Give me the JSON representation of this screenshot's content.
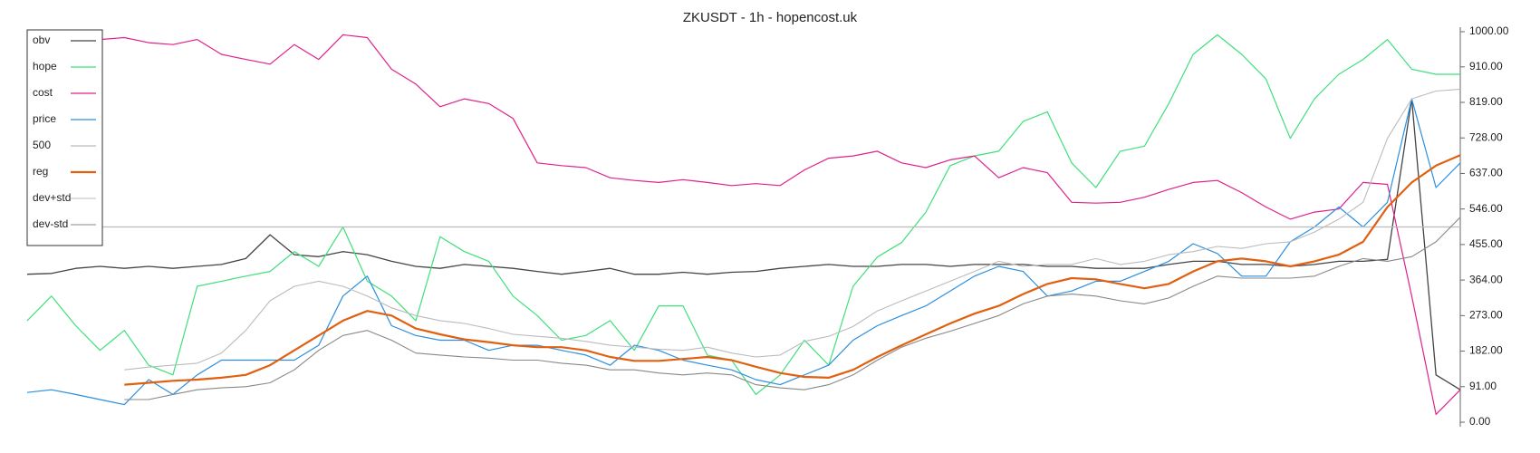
{
  "chart_data": {
    "type": "line",
    "title": "ZKUSDT - 1h - hopencost.uk",
    "ylim": [
      0,
      1000
    ],
    "yticks": [
      {
        "value": 0,
        "label": "0.00"
      },
      {
        "value": 91,
        "label": "91.00"
      },
      {
        "value": 182,
        "label": "182.00"
      },
      {
        "value": 273,
        "label": "273.00"
      },
      {
        "value": 364,
        "label": "364.00"
      },
      {
        "value": 455,
        "label": "455.00"
      },
      {
        "value": 546,
        "label": "546.00"
      },
      {
        "value": 637,
        "label": "637.00"
      },
      {
        "value": 728,
        "label": "728.00"
      },
      {
        "value": 819,
        "label": "819.00"
      },
      {
        "value": 910,
        "label": "910.00"
      },
      {
        "value": 1000,
        "label": "1000.00"
      }
    ],
    "legend": "upper left",
    "series": [
      {
        "name": "obv",
        "color": "#444444",
        "width": 1.3,
        "values": [
          379,
          381,
          394,
          399,
          394,
          399,
          394,
          399,
          404,
          419,
          480,
          429,
          424,
          437,
          429,
          412,
          399,
          394,
          404,
          399,
          394,
          386,
          379,
          386,
          394,
          379,
          379,
          384,
          379,
          384,
          386,
          394,
          399,
          404,
          399,
          399,
          404,
          404,
          399,
          404,
          404,
          404,
          399,
          399,
          394,
          394,
          394,
          404,
          412,
          412,
          404,
          404,
          399,
          404,
          412,
          412,
          417,
          828,
          121,
          83
        ]
      },
      {
        "name": "hope",
        "color": "#3ee07a",
        "width": 1.2,
        "values": [
          260,
          323,
          247,
          184,
          235,
          146,
          121,
          348,
          361,
          374,
          386,
          437,
          399,
          500,
          361,
          323,
          260,
          475,
          437,
          412,
          323,
          273,
          210,
          222,
          260,
          184,
          298,
          298,
          172,
          159,
          71,
          121,
          210,
          146,
          348,
          423,
          460,
          538,
          657,
          682,
          694,
          770,
          795,
          664,
          601,
          694,
          707,
          816,
          942,
          992,
          942,
          879,
          727,
          828,
          891,
          929,
          980,
          904,
          891,
          891
        ]
      },
      {
        "name": "cost",
        "color": "#e0218a",
        "width": 1.2,
        "values": [
          980,
          980,
          980,
          980,
          985,
          972,
          967,
          980,
          942,
          929,
          917,
          967,
          929,
          992,
          985,
          904,
          866,
          808,
          828,
          816,
          778,
          664,
          657,
          652,
          626,
          619,
          614,
          621,
          614,
          606,
          611,
          606,
          646,
          676,
          682,
          694,
          664,
          652,
          672,
          682,
          626,
          652,
          639,
          563,
          561,
          563,
          576,
          596,
          614,
          619,
          588,
          551,
          520,
          538,
          546,
          614,
          609,
          323,
          20,
          83
        ]
      },
      {
        "name": "price",
        "color": "#2a8fe0",
        "width": 1.2,
        "values": [
          76,
          83,
          71,
          58,
          45,
          109,
          71,
          121,
          159,
          159,
          159,
          159,
          197,
          323,
          374,
          247,
          222,
          210,
          210,
          184,
          197,
          197,
          184,
          172,
          146,
          197,
          184,
          159,
          146,
          134,
          109,
          96,
          121,
          146,
          210,
          247,
          273,
          298,
          336,
          374,
          399,
          386,
          323,
          336,
          361,
          361,
          386,
          412,
          457,
          432,
          374,
          374,
          462,
          500,
          551,
          500,
          563,
          828,
          601,
          664
        ]
      },
      {
        "name": "500",
        "color": "#bbbbbb",
        "width": 1.2,
        "values": [
          500,
          500,
          500,
          500,
          500,
          500,
          500,
          500,
          500,
          500,
          500,
          500,
          500,
          500,
          500,
          500,
          500,
          500,
          500,
          500,
          500,
          500,
          500,
          500,
          500,
          500,
          500,
          500,
          500,
          500,
          500,
          500,
          500,
          500,
          500,
          500,
          500,
          500,
          500,
          500,
          500,
          500,
          500,
          500,
          500,
          500,
          500,
          500,
          500,
          500,
          500,
          500,
          500,
          500,
          500,
          500,
          500,
          500,
          500,
          500
        ]
      },
      {
        "name": "reg",
        "color": "#e06010",
        "width": 2.2,
        "values": [
          null,
          null,
          null,
          null,
          96,
          101,
          106,
          109,
          114,
          121,
          146,
          184,
          222,
          260,
          285,
          273,
          240,
          225,
          212,
          205,
          197,
          192,
          192,
          184,
          167,
          157,
          157,
          162,
          167,
          159,
          142,
          126,
          116,
          114,
          134,
          167,
          197,
          225,
          253,
          278,
          298,
          328,
          354,
          369,
          366,
          354,
          343,
          354,
          386,
          412,
          419,
          412,
          399,
          412,
          429,
          462,
          551,
          614,
          657,
          684
        ]
      },
      {
        "name": "dev+std",
        "color": "#bbbbbb",
        "width": 1.1,
        "values": [
          null,
          null,
          null,
          null,
          134,
          141,
          146,
          151,
          177,
          235,
          311,
          348,
          361,
          348,
          323,
          293,
          273,
          260,
          253,
          240,
          225,
          220,
          215,
          207,
          197,
          192,
          187,
          184,
          192,
          177,
          167,
          172,
          207,
          220,
          245,
          285,
          311,
          336,
          361,
          386,
          412,
          399,
          404,
          404,
          419,
          404,
          412,
          429,
          437,
          450,
          445,
          457,
          462,
          487,
          520,
          563,
          727,
          828,
          848,
          853
        ]
      },
      {
        "name": "dev-std",
        "color": "#888888",
        "width": 1.1,
        "values": [
          null,
          null,
          null,
          null,
          58,
          58,
          71,
          83,
          88,
          91,
          101,
          134,
          184,
          222,
          235,
          210,
          177,
          172,
          167,
          164,
          159,
          159,
          151,
          146,
          134,
          134,
          126,
          121,
          126,
          121,
          96,
          88,
          83,
          96,
          121,
          159,
          192,
          215,
          233,
          253,
          273,
          303,
          323,
          328,
          323,
          311,
          303,
          318,
          348,
          374,
          369,
          369,
          369,
          374,
          399,
          419,
          412,
          424,
          462,
          525
        ]
      }
    ]
  }
}
